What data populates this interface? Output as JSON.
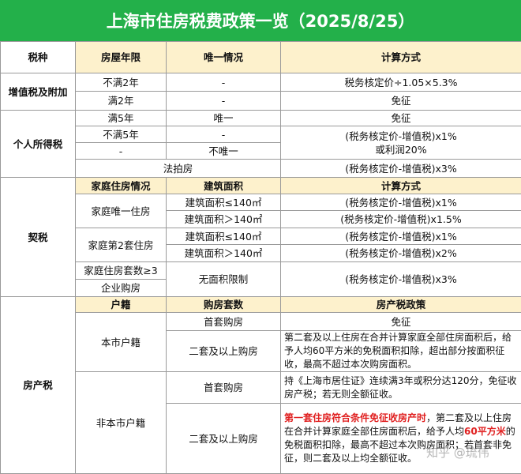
{
  "title": "上海市住房税费政策一览（2025/8/25）",
  "header": [
    "税种",
    "房屋年限",
    "唯一情况",
    "计算方式"
  ],
  "vat": {
    "name": "增值税及附加",
    "rows": [
      [
        "不满2年",
        "-",
        "税务核定价÷1.05×5.3%"
      ],
      [
        "满2年",
        "-",
        "免征"
      ]
    ]
  },
  "income": {
    "name": "个人所得税",
    "rows": [
      [
        "满5年",
        "唯一",
        "免征"
      ],
      [
        "不满5年",
        "-"
      ],
      [
        "-",
        "不唯一"
      ]
    ],
    "formula": [
      "(税务核定价-增值税)x1%",
      "或利润20%"
    ],
    "auction": [
      "法拍房",
      "(税务核定价-增值税)x3%"
    ]
  },
  "deed": {
    "name": "契税",
    "header": [
      "家庭住房情况",
      "建筑面积",
      "计算方式"
    ],
    "groups": [
      {
        "label": "家庭唯一住房",
        "rows": [
          [
            "建筑面积≤140㎡",
            "(税务核定价-增值税)x1%"
          ],
          [
            "建筑面积＞140㎡",
            "(税务核定价-增值税)x1.5%"
          ]
        ]
      },
      {
        "label": "家庭第2套住房",
        "rows": [
          [
            "建筑面积≤140㎡",
            "(税务核定价-增值税)x1%"
          ],
          [
            "建筑面积＞140㎡",
            "(税务核定价-增值税)x2%"
          ]
        ]
      }
    ],
    "other": {
      "labels": [
        "家庭住房套数≥3",
        "企业购房"
      ],
      "area": "无面积限制",
      "formula": "(税务核定价-增值税)x3%"
    }
  },
  "property": {
    "name": "房产税",
    "header": [
      "户籍",
      "购房套数",
      "房产税政策"
    ],
    "local": {
      "label": "本市户籍",
      "rows": [
        [
          "首套购房",
          "免征"
        ],
        [
          "二套及以上购房",
          "第二套及以上住房在合并计算家庭全部住房面积后，给予人均60平方米的免税面积扣除，超出部分按面积征收，最高不超过本次购房面积。"
        ]
      ]
    },
    "nonlocal": {
      "label": "非本市户籍",
      "first": [
        "首套购房",
        "持《上海市居住证》连续满3年或积分达120分，免征收房产税；若无则全额征收。"
      ],
      "second": [
        "二套及以上购房",
        [
          "第一套住房符合条件免征收房产时",
          "，第二套及以上住房在合并计算家庭全部住房面积后，给予人均",
          "60平方米",
          "的免税面积扣除，最高不超过本次购房面积；若首套非免征，则二套及以上均全额征收。"
        ]
      ]
    }
  },
  "watermark": "知乎 @琉伟"
}
